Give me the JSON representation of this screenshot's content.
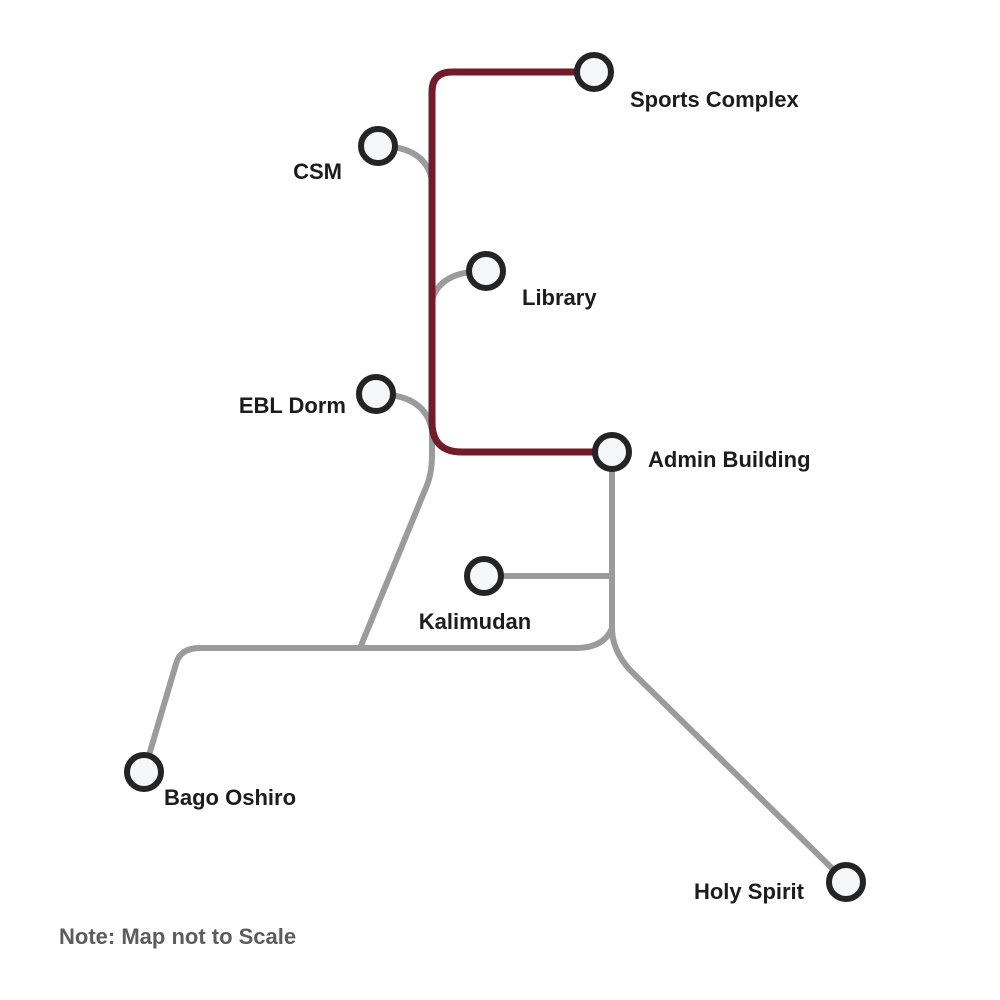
{
  "map": {
    "stations": [
      {
        "id": "sports-complex",
        "label": "Sports Complex"
      },
      {
        "id": "csm",
        "label": "CSM"
      },
      {
        "id": "library",
        "label": "Library"
      },
      {
        "id": "ebl-dorm",
        "label": "EBL Dorm"
      },
      {
        "id": "admin-building",
        "label": "Admin Building"
      },
      {
        "id": "kalimudan",
        "label": "Kalimudan"
      },
      {
        "id": "bago-oshiro",
        "label": "Bago Oshiro"
      },
      {
        "id": "holy-spirit",
        "label": "Holy Spirit"
      }
    ],
    "note": "Note: Map not to Scale"
  },
  "colors": {
    "main_route": "#721c29",
    "branch_route": "#9b9b9b",
    "station_fill": "#f5f6f8",
    "station_stroke": "#242424",
    "label_text": "#1c1c1c",
    "note_text": "#5c5c5c"
  }
}
